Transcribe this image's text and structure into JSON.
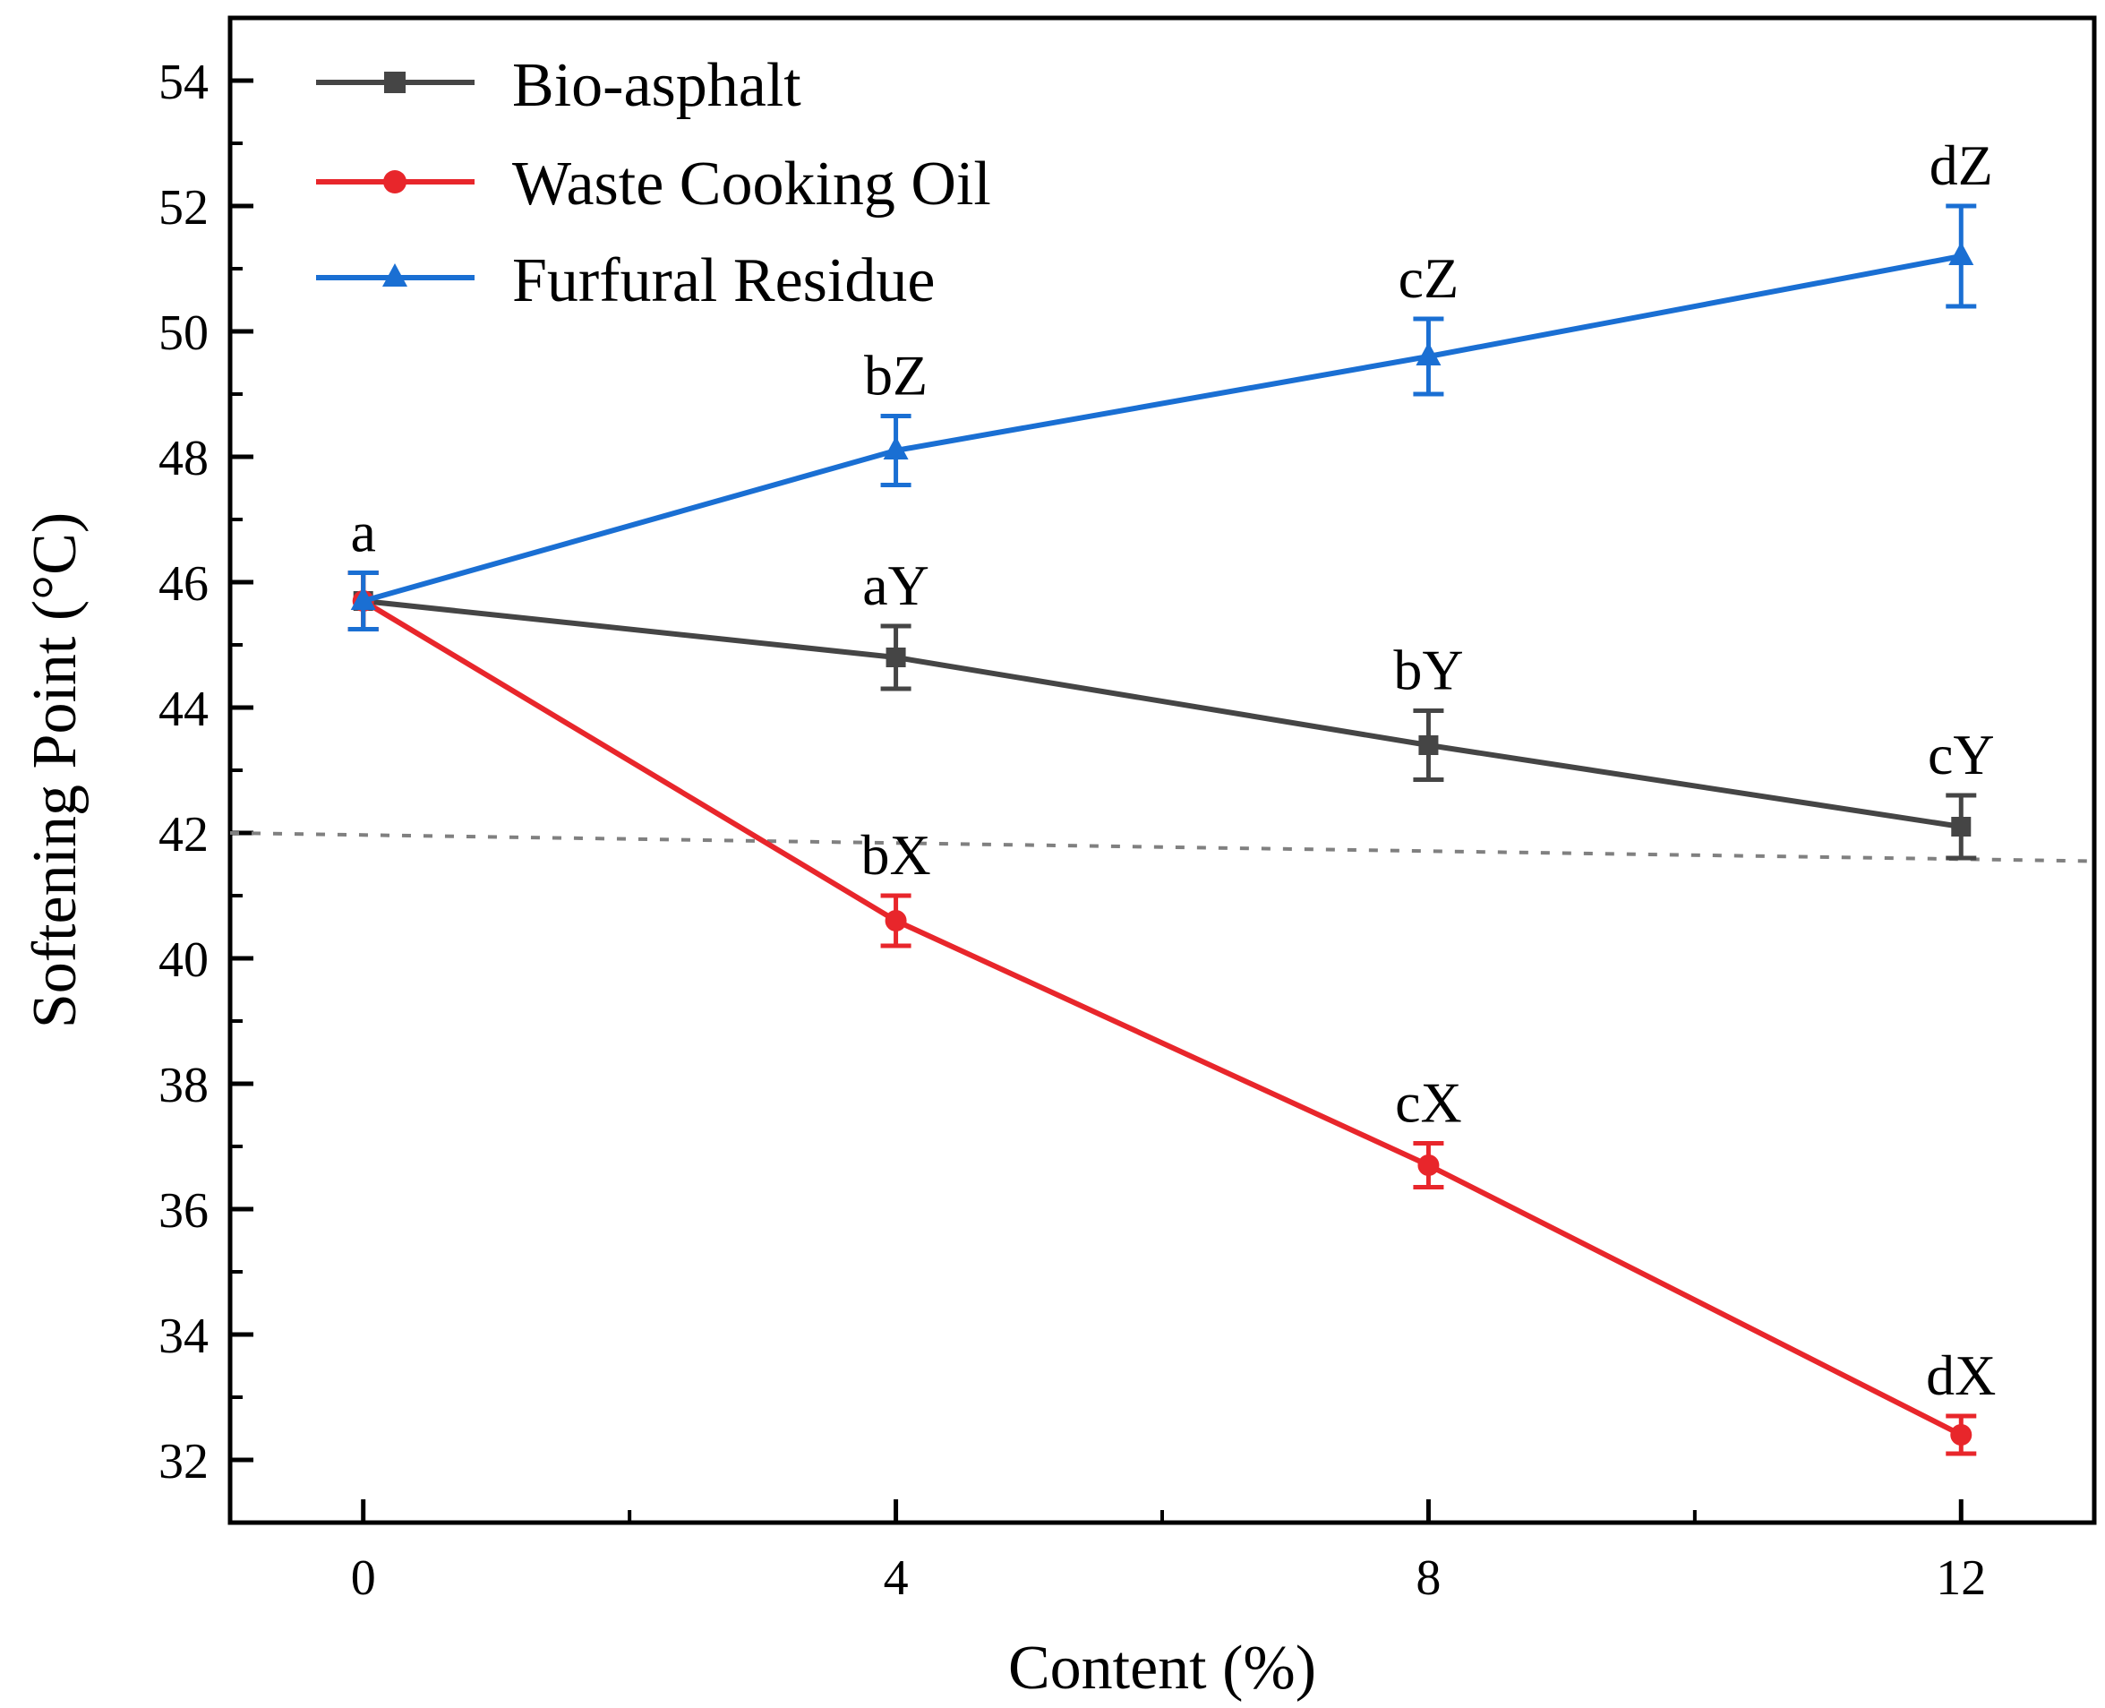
{
  "chart_data": {
    "type": "line",
    "xlabel": "Content (%)",
    "ylabel": "Softening Point (°C)",
    "xlim": [
      -1,
      13
    ],
    "ylim": [
      31,
      55
    ],
    "x": [
      0,
      4,
      8,
      12
    ],
    "x_tick_labels": [
      "0",
      "4",
      "8",
      "12"
    ],
    "y_ticks": [
      32,
      34,
      36,
      38,
      40,
      42,
      44,
      46,
      48,
      50,
      52,
      54
    ],
    "y_tick_labels": [
      "32",
      "34",
      "36",
      "38",
      "40",
      "42",
      "44",
      "46",
      "48",
      "50",
      "52",
      "54"
    ],
    "grid": false,
    "legend_position": "top-left",
    "series": [
      {
        "name": "Bio-asphalt",
        "color": "#454545",
        "marker": "square",
        "values": [
          45.7,
          44.8,
          43.4,
          42.1
        ],
        "errors": [
          0.45,
          0.5,
          0.55,
          0.5
        ],
        "point_labels": [
          "",
          "aY",
          "bY",
          "cY"
        ]
      },
      {
        "name": "Waste Cooking Oil",
        "color": "#e8262b",
        "marker": "circle",
        "values": [
          45.7,
          40.6,
          36.7,
          32.4
        ],
        "errors": [
          0.45,
          0.4,
          0.35,
          0.3
        ],
        "point_labels": [
          "",
          "bX",
          "cX",
          "dX"
        ]
      },
      {
        "name": "Furfural Residue",
        "color": "#1a6fd3",
        "marker": "triangle",
        "values": [
          45.7,
          48.1,
          49.6,
          51.2
        ],
        "errors": [
          0.45,
          0.55,
          0.6,
          0.8
        ],
        "point_labels": [
          "a",
          "bZ",
          "cZ",
          "dZ"
        ]
      }
    ],
    "reference_line": {
      "style": "dotted",
      "color": "#808080",
      "x": [
        -1,
        13
      ],
      "y": [
        42.0,
        41.55
      ]
    }
  }
}
